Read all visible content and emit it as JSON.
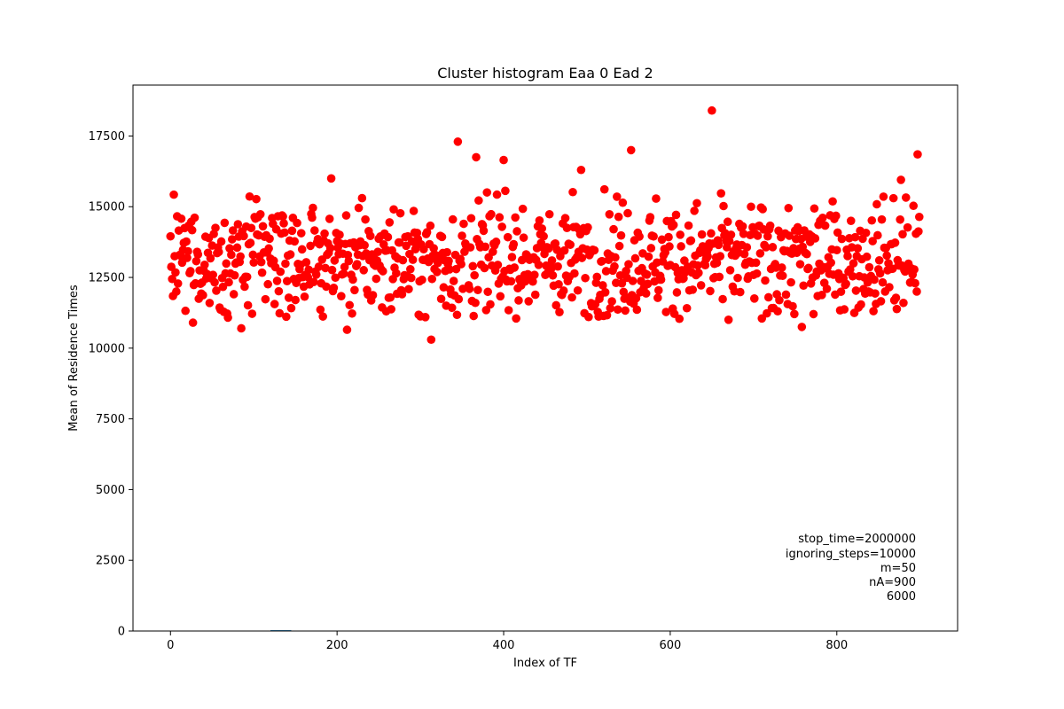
{
  "chart_data": {
    "type": "scatter",
    "title": "Cluster histogram Eaa 0 Ead 2",
    "xlabel": "Index of TF",
    "ylabel": "Mean of Residence Times",
    "xlim": [
      -45,
      945
    ],
    "ylim": [
      0,
      19300
    ],
    "xticks": [
      0,
      200,
      400,
      600,
      800
    ],
    "yticks": [
      0,
      2500,
      5000,
      7500,
      10000,
      12500,
      15000,
      17500
    ],
    "grid": false,
    "marker_color": "#ff0000",
    "n_points": 900,
    "value_range": [
      10300,
      18400
    ],
    "typical_mean": 13100,
    "notable_points": [
      {
        "x": 650,
        "y": 18400
      },
      {
        "x": 345,
        "y": 17300
      },
      {
        "x": 553,
        "y": 17000
      },
      {
        "x": 897,
        "y": 16850
      },
      {
        "x": 367,
        "y": 16750
      },
      {
        "x": 400,
        "y": 16650
      },
      {
        "x": 493,
        "y": 16300
      },
      {
        "x": 85,
        "y": 16100
      },
      {
        "x": 193,
        "y": 16000
      },
      {
        "x": 877,
        "y": 15950
      },
      {
        "x": 313,
        "y": 10300
      },
      {
        "x": 212,
        "y": 10650
      },
      {
        "x": 758,
        "y": 10750
      },
      {
        "x": 85,
        "y": 10700
      },
      {
        "x": 27,
        "y": 10900
      }
    ],
    "baseline_bar": {
      "x": [
        120,
        145
      ],
      "y": 30,
      "color": "#1f77b4"
    },
    "annotations": [
      "stop_time=2000000",
      "ignoring_steps=10000",
      "m=50",
      "nA=900",
      "6000"
    ]
  }
}
